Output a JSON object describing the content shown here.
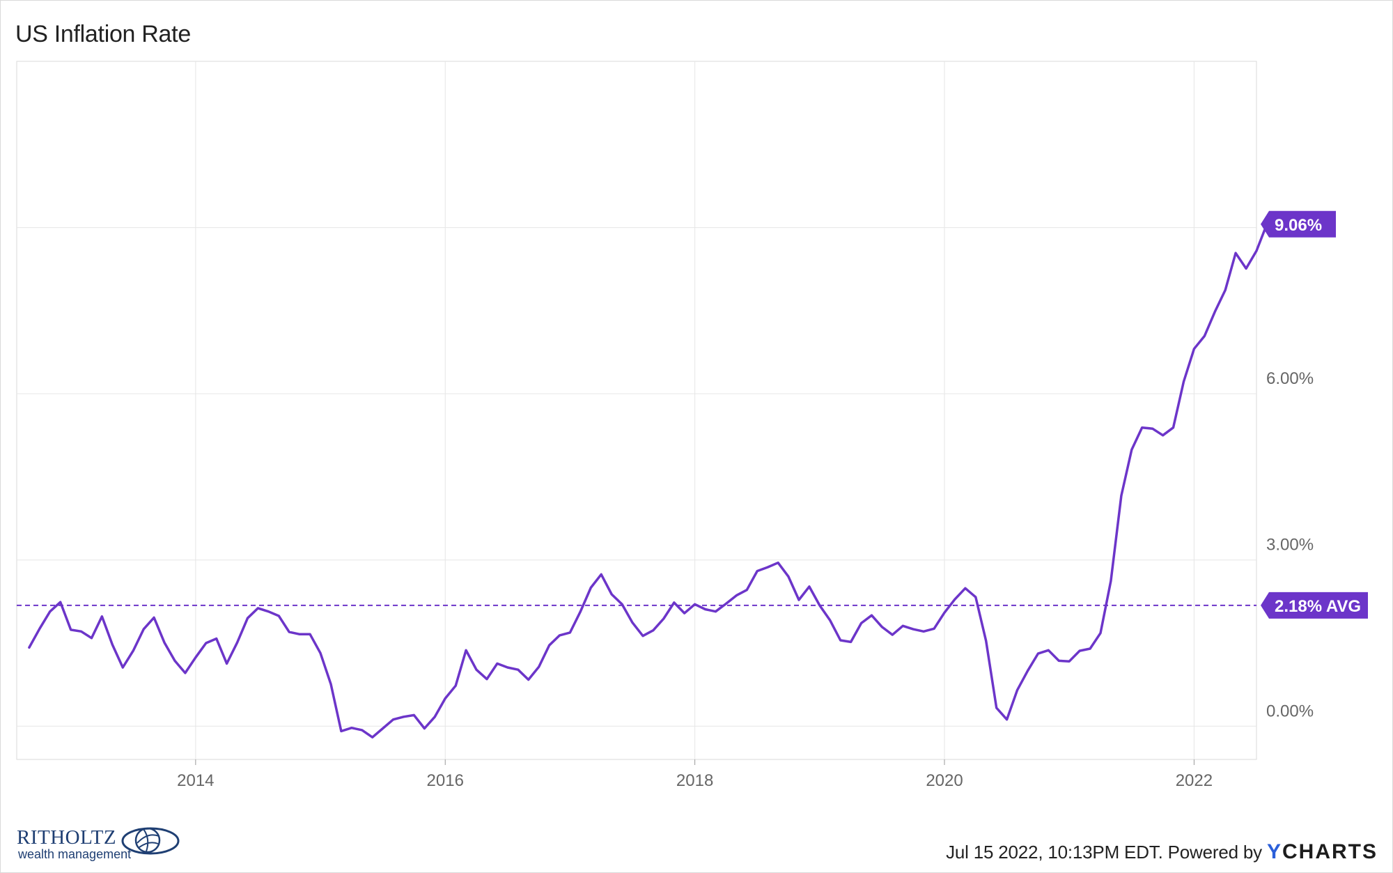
{
  "title": "US Inflation Rate",
  "footer": {
    "timestamp": "Jul 15 2022, 10:13PM EDT.",
    "powered_by": "Powered by",
    "brand_y": "Y",
    "brand_rest": "CHARTS"
  },
  "logo": {
    "name": "RITHOLTZ",
    "sub": "wealth management"
  },
  "colors": {
    "line": "#6c35c9",
    "badge": "#6c35c9",
    "grid": "#e6e6e6"
  },
  "chart_data": {
    "type": "line",
    "title": "US Inflation Rate",
    "x_ticks": [
      "2014",
      "2016",
      "2018",
      "2020",
      "2022"
    ],
    "y_ticks": [
      "0.00%",
      "3.00%",
      "6.00%"
    ],
    "ylim": [
      -0.6,
      12.0
    ],
    "xlim": [
      "2012-08",
      "2022-07"
    ],
    "grid": true,
    "series": [
      {
        "start": "2012-09",
        "frequency": "monthly",
        "values": [
          1.42,
          1.76,
          2.07,
          2.24,
          1.74,
          1.71,
          1.59,
          1.98,
          1.47,
          1.06,
          1.36,
          1.75,
          1.96,
          1.51,
          1.18,
          0.96,
          1.24,
          1.5,
          1.58,
          1.13,
          1.51,
          1.95,
          2.13,
          2.07,
          1.99,
          1.7,
          1.66,
          1.66,
          1.32,
          0.76,
          -0.09,
          -0.03,
          -0.07,
          -0.2,
          -0.04,
          0.12,
          0.17,
          0.2,
          -0.04,
          0.17,
          0.5,
          0.73,
          1.37,
          1.02,
          0.85,
          1.13,
          1.06,
          1.02,
          0.84,
          1.07,
          1.46,
          1.64,
          1.69,
          2.07,
          2.5,
          2.74,
          2.38,
          2.2,
          1.87,
          1.63,
          1.73,
          1.94,
          2.23,
          2.04,
          2.2,
          2.11,
          2.07,
          2.21,
          2.36,
          2.46,
          2.8,
          2.87,
          2.95,
          2.7,
          2.28,
          2.52,
          2.18,
          1.91,
          1.55,
          1.52,
          1.86,
          2.0,
          1.79,
          1.65,
          1.81,
          1.75,
          1.71,
          1.76,
          2.05,
          2.29,
          2.49,
          2.33,
          1.54,
          0.33,
          0.12,
          0.65,
          1.0,
          1.31,
          1.37,
          1.18,
          1.17,
          1.36,
          1.4,
          1.68,
          2.62,
          4.16,
          4.99,
          5.39,
          5.37,
          5.25,
          5.39,
          6.22,
          6.81,
          7.04,
          7.48,
          7.87,
          8.54,
          8.26,
          8.58,
          9.06
        ]
      }
    ],
    "annotations": [
      {
        "label": "9.06%",
        "value": 9.06
      },
      {
        "label": "2.18% AVG",
        "value": 2.18,
        "style": "dashed"
      }
    ]
  }
}
